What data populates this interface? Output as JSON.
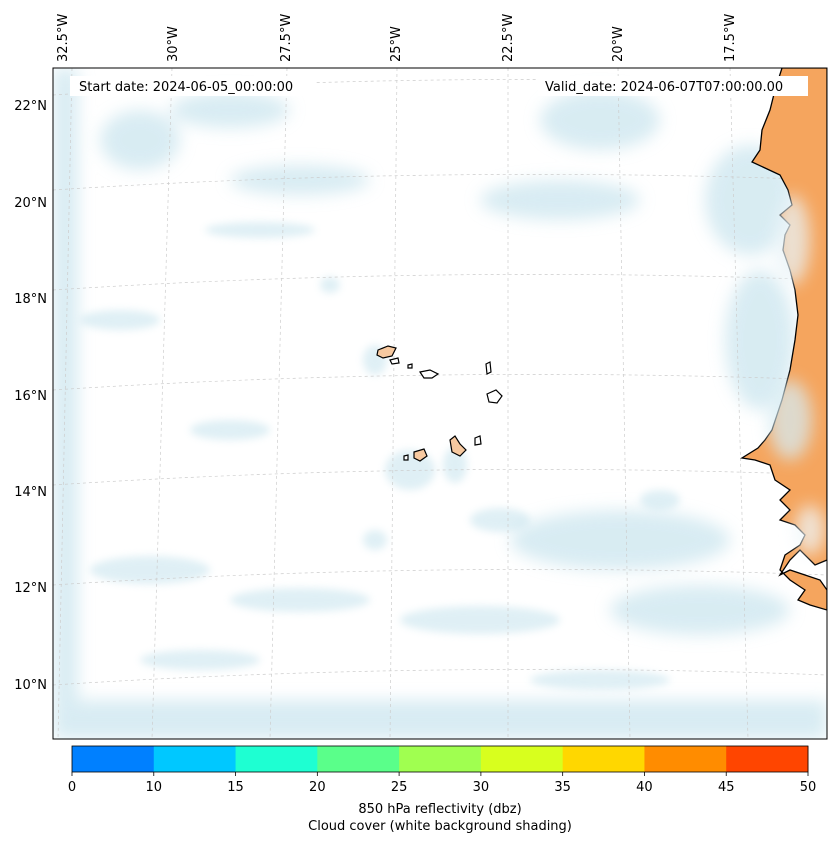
{
  "map": {
    "start_date": "Start date: 2024-06-05_00:00:00",
    "valid_date": "Valid_date: 2024-06-07T07:00:00.00",
    "lon_labels": [
      "32.5°W",
      "30°W",
      "27.5°W",
      "25°W",
      "22.5°W",
      "20°W",
      "17.5°W"
    ],
    "lat_labels": [
      "22°N",
      "20°N",
      "18°N",
      "16°N",
      "14°N",
      "12°N",
      "10°N"
    ],
    "land_color": "#f5a55e",
    "cloud_color": "#b9dde9"
  },
  "colorbar": {
    "ticks": [
      "0",
      "10",
      "15",
      "20",
      "25",
      "30",
      "35",
      "40",
      "45",
      "50"
    ],
    "colors": [
      "#0080ff",
      "#00c8ff",
      "#1effd2",
      "#5aff8a",
      "#a0ff50",
      "#d8ff1e",
      "#ffd700",
      "#ff8c00",
      "#ff4500"
    ],
    "label_line1": "850 hPa reflectivity (dbz)",
    "label_line2": "Cloud cover (white background shading)"
  }
}
